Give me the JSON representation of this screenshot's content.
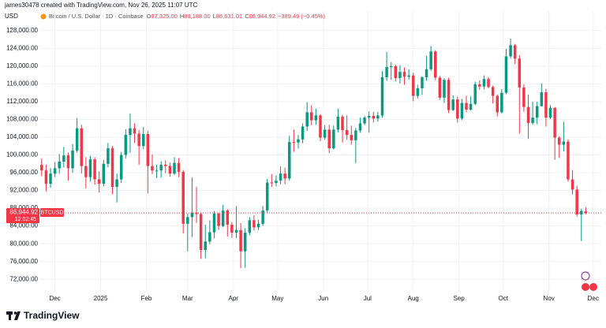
{
  "chart_data": {
    "type": "candlestick",
    "author_line": "james30478 created with TradingView.com, Nov 26, 2025 11:07 UTC",
    "currency": "USD",
    "title": "Bitcoin / U.S. Dollar · 1D · Coinbase",
    "ohlc": [
      {
        "key": "O",
        "text": "87,325.00"
      },
      {
        "key": "H",
        "text": "88,188.00"
      },
      {
        "key": "L",
        "text": "86,631.01"
      },
      {
        "key": "C",
        "text": "86,944.92"
      }
    ],
    "change": "−389.49 (−0.45%)",
    "symbol_tag": "BTCUSD",
    "countdown": "12:52:45",
    "brand": "TradingView",
    "up_color": "#089981",
    "down_color": "#f23645",
    "grid": true,
    "last_price": {
      "value": 86944.92,
      "label": "86,944.92"
    },
    "ylim": [
      69200,
      132400
    ],
    "yticks": [
      {
        "value": 72000,
        "label": "72,000.00"
      },
      {
        "value": 76000,
        "label": "76,000.00"
      },
      {
        "value": 80000,
        "label": "80,000.00"
      },
      {
        "value": 84000,
        "label": "84,000.00"
      },
      {
        "value": 88000,
        "label": "88,000.00"
      },
      {
        "value": 92000,
        "label": "92,000.00"
      },
      {
        "value": 96000,
        "label": "96,000.00"
      },
      {
        "value": 100000,
        "label": "100,000.00"
      },
      {
        "value": 104000,
        "label": "104,000.00"
      },
      {
        "value": 108000,
        "label": "108,000.00"
      },
      {
        "value": 112000,
        "label": "112,000.00"
      },
      {
        "value": 116000,
        "label": "116,000.00"
      },
      {
        "value": 120000,
        "label": "120,000.00"
      },
      {
        "value": 124000,
        "label": "124,000.00"
      },
      {
        "value": 128000,
        "label": "128,000.00"
      }
    ],
    "xlim": [
      -0.5,
      126.5
    ],
    "xticks": [
      {
        "value": 3,
        "label": "Dec"
      },
      {
        "value": 13.33,
        "label": "2025"
      },
      {
        "value": 23.67,
        "label": "Feb"
      },
      {
        "value": 33,
        "label": "Mar"
      },
      {
        "value": 43.33,
        "label": "Apr"
      },
      {
        "value": 53.33,
        "label": "May"
      },
      {
        "value": 63.67,
        "label": "Jun"
      },
      {
        "value": 73.67,
        "label": "Jul"
      },
      {
        "value": 84,
        "label": "Aug"
      },
      {
        "value": 94.33,
        "label": "Sep"
      },
      {
        "value": 104.33,
        "label": "Oct"
      },
      {
        "value": 114.67,
        "label": "Nov"
      },
      {
        "value": 124.67,
        "label": "Dec"
      }
    ],
    "open": [
      97800,
      96500,
      93500,
      95800,
      97000,
      98500,
      99900,
      97000,
      101000,
      106000,
      97500,
      95000,
      99000,
      94500,
      93500,
      98000,
      101500,
      92800,
      94500,
      100000,
      104500,
      106000,
      104800,
      102000,
      104700,
      97500,
      96500,
      96500,
      97800,
      97500,
      95800,
      98200,
      96200,
      84500,
      86000,
      87000,
      86700,
      78600,
      80500,
      82600,
      86800,
      84000,
      87500,
      84300,
      82500,
      83100,
      78300,
      82500,
      85300,
      83700,
      84500,
      87500,
      93800,
      93700,
      94200,
      95800,
      94700,
      102900,
      102800,
      103500,
      106400,
      109600,
      107800,
      108900,
      103900,
      105700,
      101500,
      105700,
      108600,
      105600,
      104500,
      103300,
      105500,
      107100,
      108400,
      108800,
      108200,
      108900,
      117500,
      119800,
      120000,
      117300,
      118700,
      117600,
      117900,
      113300,
      115000,
      117500,
      119300,
      123300,
      117400,
      112900,
      116900,
      110100,
      112500,
      108200,
      111700,
      110200,
      111500,
      115900,
      115400,
      117100,
      115300,
      113300,
      109600,
      114000,
      122200,
      124700,
      121700,
      115200,
      110800,
      107200,
      108400,
      111000,
      114100,
      108400,
      110600,
      103900,
      102300,
      103000,
      94500,
      92200,
      86600,
      87325
    ],
    "high": [
      99200,
      97800,
      97000,
      98400,
      100200,
      101800,
      100500,
      102500,
      108300,
      106800,
      99500,
      99800,
      99500,
      96300,
      98900,
      102700,
      102000,
      95800,
      100700,
      105800,
      109300,
      107100,
      105600,
      106300,
      105500,
      100100,
      97800,
      98600,
      98800,
      98300,
      99500,
      99300,
      96600,
      86800,
      95000,
      92800,
      86900,
      84300,
      85300,
      87400,
      87000,
      88800,
      87800,
      84900,
      88500,
      84700,
      83500,
      86000,
      86400,
      85400,
      88500,
      94600,
      95700,
      95400,
      97400,
      97100,
      104300,
      105700,
      104500,
      107100,
      111900,
      111200,
      110400,
      109200,
      106700,
      106800,
      106600,
      110400,
      109000,
      108900,
      106600,
      106100,
      108400,
      108800,
      109800,
      109700,
      109700,
      118900,
      123200,
      120900,
      120300,
      120200,
      119700,
      119300,
      118500,
      115800,
      117700,
      122300,
      124500,
      123600,
      117800,
      117300,
      117400,
      113400,
      113100,
      112600,
      113300,
      113200,
      116500,
      116800,
      117900,
      117500,
      115600,
      113600,
      114800,
      123900,
      126200,
      125000,
      122500,
      115900,
      113600,
      112000,
      112000,
      116100,
      114900,
      111200,
      110800,
      104200,
      107500,
      103500,
      96600,
      93100,
      87900,
      88188
    ],
    "low": [
      95200,
      91800,
      92600,
      95000,
      95800,
      97200,
      94200,
      96000,
      100500,
      95800,
      92500,
      94000,
      93300,
      91500,
      92900,
      97200,
      91200,
      89300,
      93700,
      99200,
      100500,
      102700,
      97800,
      101300,
      91300,
      95700,
      94800,
      94900,
      95900,
      95100,
      95500,
      95000,
      82300,
      78300,
      81500,
      84700,
      76600,
      76700,
      79900,
      81200,
      83100,
      83700,
      81600,
      81300,
      81300,
      74500,
      74600,
      81900,
      83000,
      83100,
      84000,
      86900,
      92800,
      92900,
      93400,
      93400,
      94200,
      100700,
      101400,
      102600,
      105400,
      106700,
      106800,
      103100,
      103400,
      100400,
      101200,
      105100,
      102800,
      103400,
      102300,
      98200,
      105000,
      106700,
      105000,
      107300,
      107500,
      108400,
      116700,
      116900,
      116500,
      116100,
      115800,
      116900,
      112100,
      112700,
      113500,
      116700,
      118900,
      116800,
      112400,
      111700,
      109400,
      109900,
      107300,
      107800,
      109600,
      110000,
      111200,
      114700,
      114800,
      115000,
      111600,
      108700,
      109300,
      113700,
      121700,
      120500,
      104800,
      109700,
      103600,
      106800,
      106900,
      110900,
      106400,
      108100,
      98900,
      99300,
      100800,
      94000,
      91100,
      86100,
      80600,
      86631.01
    ],
    "close": [
      96500,
      93500,
      95800,
      97000,
      98500,
      99900,
      97000,
      101000,
      106000,
      97500,
      95000,
      99000,
      94500,
      93500,
      98000,
      101500,
      92800,
      94500,
      100000,
      104500,
      106000,
      104800,
      102000,
      104700,
      97500,
      96500,
      96500,
      97800,
      97500,
      95800,
      98200,
      96200,
      84500,
      86000,
      87000,
      86700,
      78600,
      80500,
      82600,
      86800,
      84000,
      87500,
      84300,
      82500,
      83100,
      78300,
      82500,
      85300,
      83700,
      84500,
      87500,
      93800,
      93700,
      94200,
      95800,
      94700,
      102900,
      102800,
      103500,
      106400,
      109600,
      107800,
      108900,
      103900,
      105700,
      101500,
      105700,
      108600,
      105600,
      104500,
      103300,
      105500,
      107100,
      108400,
      108800,
      108200,
      108900,
      117500,
      119800,
      120000,
      117300,
      118700,
      117600,
      117900,
      113300,
      115000,
      117500,
      119300,
      123300,
      117400,
      112900,
      116900,
      110100,
      112500,
      108200,
      111700,
      110200,
      111500,
      115900,
      115400,
      117100,
      115300,
      113300,
      109600,
      114000,
      122200,
      124700,
      121700,
      115200,
      110800,
      107200,
      108400,
      111000,
      114100,
      108400,
      110600,
      103900,
      102300,
      103000,
      94500,
      92200,
      86600,
      87400,
      86944.92
    ]
  }
}
